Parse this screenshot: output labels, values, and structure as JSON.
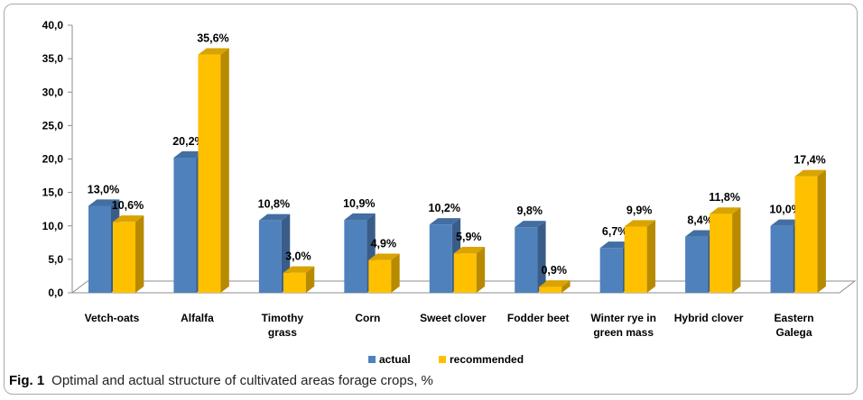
{
  "caption": {
    "figure_label": "Fig. 1",
    "text": "Optimal and actual structure of cultivated areas forage crops, %"
  },
  "colors": {
    "actual": "#4f81bd",
    "recommended": "#ffc000"
  },
  "chart_data": {
    "type": "bar",
    "title": "",
    "xlabel": "",
    "ylabel": "",
    "ylim": [
      0,
      40
    ],
    "yticks": [
      "0,0",
      "5,0",
      "10,0",
      "15,0",
      "20,0",
      "25,0",
      "30,0",
      "35,0",
      "40,0"
    ],
    "grid": false,
    "legend_position": "bottom",
    "categories": [
      [
        "Vetch-oats"
      ],
      [
        "Alfalfa"
      ],
      [
        "Timothy",
        "grass"
      ],
      [
        "Corn"
      ],
      [
        "Sweet clover"
      ],
      [
        "Fodder beet"
      ],
      [
        "Winter rye in",
        "green mass"
      ],
      [
        "Hybrid clover"
      ],
      [
        "Eastern",
        "Galega"
      ]
    ],
    "series": [
      {
        "name": "actual",
        "values": [
          13.0,
          20.2,
          10.8,
          10.9,
          10.2,
          9.8,
          6.7,
          8.4,
          10.0
        ],
        "labels": [
          "13,0%",
          "20,2%",
          "10,8%",
          "10,9%",
          "10,2%",
          "9,8%",
          "6,7%",
          "8,4%",
          "10,0%"
        ]
      },
      {
        "name": "recommended",
        "values": [
          10.6,
          35.6,
          3.0,
          4.9,
          5.9,
          0.9,
          9.9,
          11.8,
          17.4
        ],
        "labels": [
          "10,6%",
          "35,6%",
          "3,0%",
          "4,9%",
          "5,9%",
          "0,9%",
          "9,9%",
          "11,8%",
          "17,4%"
        ]
      }
    ]
  }
}
